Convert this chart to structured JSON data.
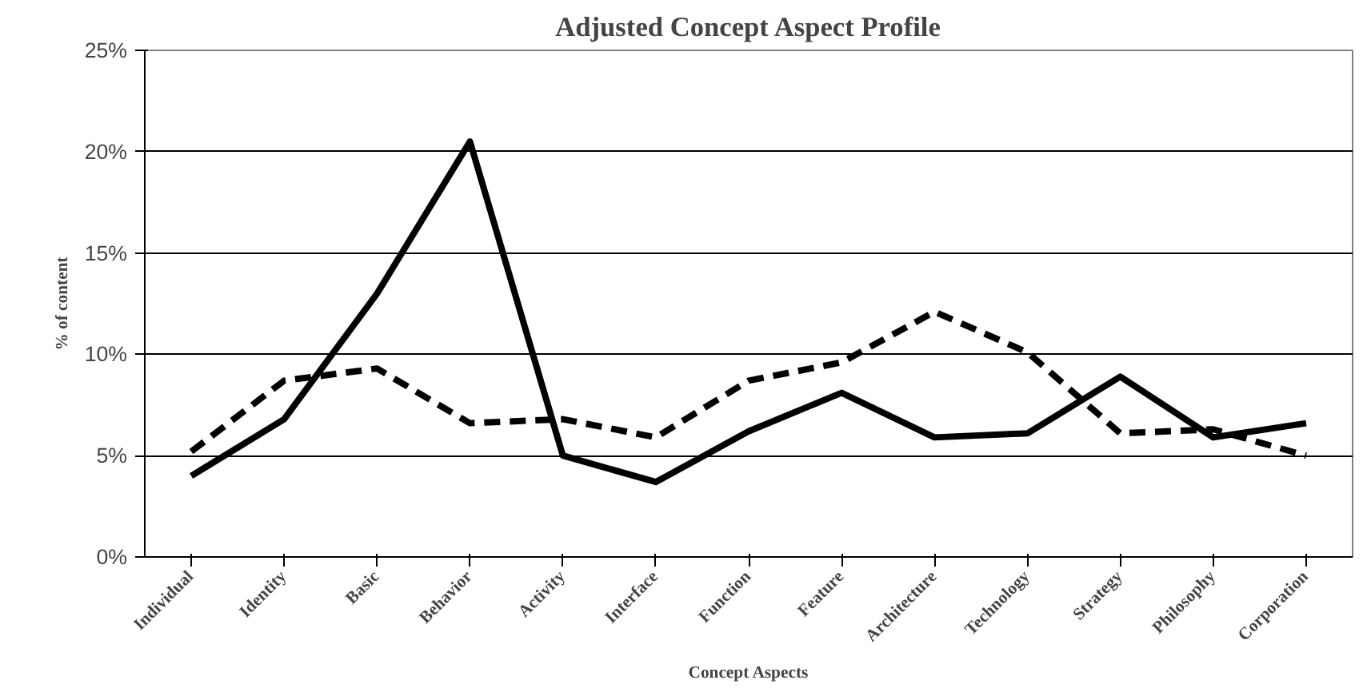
{
  "chart_data": {
    "type": "line",
    "title": "Adjusted Concept Aspect Profile",
    "xlabel": "Concept Aspects",
    "ylabel": "% of content",
    "categories": [
      "Individual",
      "Identity",
      "Basic",
      "Behavior",
      "Activity",
      "Interface",
      "Function",
      "Feature",
      "Architecture",
      "Technology",
      "Strategy",
      "Philosophy",
      "Corporation"
    ],
    "series": [
      {
        "color": "#000000",
        "line_style": "solid",
        "values": [
          4.0,
          6.8,
          13.0,
          20.5,
          5.0,
          3.7,
          6.2,
          8.1,
          5.9,
          6.1,
          8.9,
          5.9,
          6.6
        ]
      },
      {
        "color": "#000000",
        "line_style": "dashed",
        "values": [
          5.2,
          8.7,
          9.3,
          6.6,
          6.8,
          5.9,
          8.7,
          9.6,
          12.1,
          10.1,
          6.1,
          6.3,
          5.0
        ]
      }
    ],
    "ylim": [
      0,
      25
    ],
    "yticks": [
      {
        "value": 0,
        "label": "0%"
      },
      {
        "value": 5,
        "label": "5%"
      },
      {
        "value": 10,
        "label": "10%"
      },
      {
        "value": 15,
        "label": "15%"
      },
      {
        "value": 20,
        "label": "20%"
      },
      {
        "value": 25,
        "label": "25%"
      }
    ],
    "grid": "y",
    "marker": "none"
  }
}
